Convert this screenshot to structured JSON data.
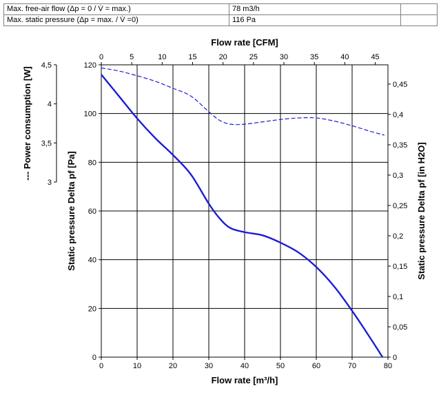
{
  "specs": [
    {
      "label": "Max. free-air flow (Δp = 0 / V̇ = max.)",
      "value": "78 m3/h",
      "extra": ""
    },
    {
      "label": "Max. static pressure (Δp = max. / V̇ =0)",
      "value": "116 Pa",
      "extra": ""
    }
  ],
  "chart_data": {
    "type": "line",
    "title": "",
    "xlabel": "Flow rate [m³/h]",
    "xlabel_top": "Flow rate [CFM]",
    "ylabel": "Static pressure Delta pf [Pa]",
    "ylabel_right": "Static pressure Delta pf [in H2O]",
    "ylabel_left_outer": "--- Power consumption [W]",
    "xlim": [
      0,
      80
    ],
    "ylim": [
      0,
      120
    ],
    "x_ticks": [
      "0",
      "10",
      "20",
      "30",
      "40",
      "50",
      "60",
      "70",
      "80"
    ],
    "x_top_ticks": [
      "0",
      "5",
      "10",
      "15",
      "20",
      "25",
      "30",
      "35",
      "40",
      "45"
    ],
    "y_ticks": [
      "0",
      "20",
      "40",
      "60",
      "80",
      "100",
      "120"
    ],
    "y_right_ticks": [
      "0",
      "0,05",
      "0,1",
      "0,15",
      "0,2",
      "0,25",
      "0,3",
      "0,35",
      "0,4",
      "0,45"
    ],
    "power_ticks": [
      "3",
      "3,5",
      "4",
      "4,5"
    ],
    "power_range": [
      3,
      4.5
    ],
    "grid": true,
    "series": [
      {
        "style": "solid",
        "color": "#1c1cd6",
        "axis": "pressure",
        "x": [
          0,
          5,
          10,
          15,
          20,
          25,
          30,
          33,
          36,
          40,
          45,
          50,
          55,
          60,
          65,
          70,
          75,
          78.5
        ],
        "y": [
          116,
          107,
          98,
          90,
          83,
          75,
          63,
          57,
          53,
          51.3,
          50,
          47,
          43,
          37,
          29,
          19,
          8,
          0
        ]
      },
      {
        "style": "dashed",
        "color": "#1c1cd6",
        "axis": "power",
        "x": [
          0,
          5,
          10,
          15,
          20,
          25,
          30,
          33,
          36,
          40,
          45,
          50,
          55,
          60,
          65,
          70,
          75,
          79
        ],
        "y": [
          4.46,
          4.42,
          4.36,
          4.29,
          4.2,
          4.1,
          3.9,
          3.79,
          3.74,
          3.74,
          3.77,
          3.8,
          3.82,
          3.82,
          3.78,
          3.72,
          3.65,
          3.6
        ]
      }
    ]
  }
}
